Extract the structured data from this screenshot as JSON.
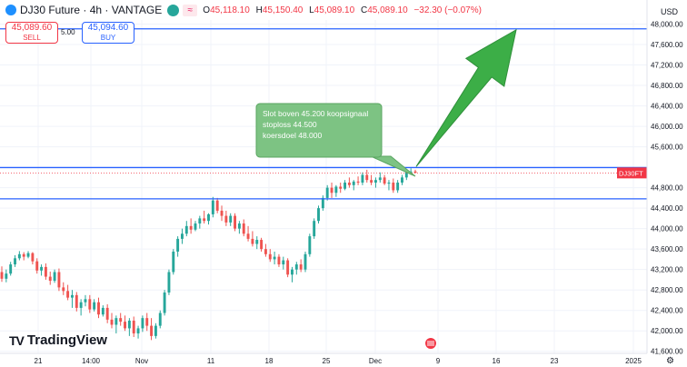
{
  "header": {
    "symbol_title": "DJ30 Future · 4h · VANTAGE",
    "open_label": "O",
    "open": "45,118.10",
    "high_label": "H",
    "high": "45,150.40",
    "low_label": "L",
    "low": "45,089.10",
    "close_label": "C",
    "close": "45,089.10",
    "change": "−32.30 (−0.07%)",
    "currency": "USD",
    "wave_icon": "≈"
  },
  "trade": {
    "sell_price": "45,089.60",
    "sell_label": "SELL",
    "buy_price": "45,094.60",
    "buy_label": "BUY",
    "spread": "5.00"
  },
  "chart_data": {
    "type": "candlestick",
    "x_tick_labels": [
      "21",
      "14:00",
      "Nov",
      "11",
      "18",
      "25",
      "Dec",
      "9",
      "16",
      "23",
      "2025"
    ],
    "y_tick_labels": [
      "48,000.00",
      "47,600.00",
      "47,200.00",
      "46,800.00",
      "46,400.00",
      "46,000.00",
      "45,600.00",
      "44,800.00",
      "44,400.00",
      "44,000.00",
      "43,600.00",
      "43,200.00",
      "42,800.00",
      "42,400.00",
      "42,000.00",
      "41,600.00"
    ],
    "ylim": [
      41560,
      48080
    ],
    "horizontal_lines": [
      {
        "value": 47906.62,
        "label": "47,906.62"
      },
      {
        "value": 45194.19,
        "label": "45,194.19"
      },
      {
        "value": 44581.89,
        "label": "44,581.89"
      }
    ],
    "last_price": {
      "value": 45089.1,
      "label": "45,089.10",
      "symbol": "DJ30FT"
    },
    "annotation": [
      "Slot boven 45.200 koopsignaal",
      "stoploss 44.500",
      "koersdoel 48.000"
    ],
    "arrow": {
      "from_value": 45194,
      "to_value": 47906
    },
    "colors": {
      "up": "#26a69a",
      "down": "#ef5350",
      "line": "#2962ff",
      "annotation_fill": "#7dc383",
      "arrow": "#3cae47"
    },
    "candles": [
      {
        "o": 43150,
        "h": 43260,
        "l": 42960,
        "c": 43020
      },
      {
        "o": 43020,
        "h": 43200,
        "l": 42950,
        "c": 43120
      },
      {
        "o": 43120,
        "h": 43350,
        "l": 43080,
        "c": 43300
      },
      {
        "o": 43300,
        "h": 43480,
        "l": 43250,
        "c": 43420
      },
      {
        "o": 43420,
        "h": 43560,
        "l": 43380,
        "c": 43500
      },
      {
        "o": 43500,
        "h": 43540,
        "l": 43380,
        "c": 43450
      },
      {
        "o": 43450,
        "h": 43560,
        "l": 43420,
        "c": 43520
      },
      {
        "o": 43520,
        "h": 43540,
        "l": 43300,
        "c": 43360
      },
      {
        "o": 43360,
        "h": 43420,
        "l": 43120,
        "c": 43180
      },
      {
        "o": 43180,
        "h": 43300,
        "l": 43080,
        "c": 43250
      },
      {
        "o": 43250,
        "h": 43320,
        "l": 43000,
        "c": 43060
      },
      {
        "o": 43060,
        "h": 43160,
        "l": 42900,
        "c": 42980
      },
      {
        "o": 42980,
        "h": 43200,
        "l": 42940,
        "c": 43150
      },
      {
        "o": 43150,
        "h": 43220,
        "l": 42780,
        "c": 42850
      },
      {
        "o": 42850,
        "h": 42950,
        "l": 42700,
        "c": 42780
      },
      {
        "o": 42780,
        "h": 42900,
        "l": 42600,
        "c": 42650
      },
      {
        "o": 42650,
        "h": 42800,
        "l": 42450,
        "c": 42700
      },
      {
        "o": 42700,
        "h": 42760,
        "l": 42380,
        "c": 42450
      },
      {
        "o": 42450,
        "h": 42620,
        "l": 42300,
        "c": 42560
      },
      {
        "o": 42560,
        "h": 42700,
        "l": 42480,
        "c": 42620
      },
      {
        "o": 42620,
        "h": 42700,
        "l": 42350,
        "c": 42420
      },
      {
        "o": 42420,
        "h": 42620,
        "l": 42380,
        "c": 42560
      },
      {
        "o": 42560,
        "h": 42650,
        "l": 42250,
        "c": 42320
      },
      {
        "o": 42320,
        "h": 42500,
        "l": 42280,
        "c": 42450
      },
      {
        "o": 42450,
        "h": 42520,
        "l": 42150,
        "c": 42220
      },
      {
        "o": 42220,
        "h": 42350,
        "l": 42050,
        "c": 42120
      },
      {
        "o": 42120,
        "h": 42300,
        "l": 41950,
        "c": 42250
      },
      {
        "o": 42250,
        "h": 42350,
        "l": 42100,
        "c": 42180
      },
      {
        "o": 42180,
        "h": 42300,
        "l": 42000,
        "c": 42050
      },
      {
        "o": 42050,
        "h": 42250,
        "l": 41900,
        "c": 42200
      },
      {
        "o": 42200,
        "h": 42280,
        "l": 41880,
        "c": 41950
      },
      {
        "o": 41950,
        "h": 42100,
        "l": 41850,
        "c": 42050
      },
      {
        "o": 42050,
        "h": 42300,
        "l": 41980,
        "c": 42250
      },
      {
        "o": 42250,
        "h": 42350,
        "l": 42000,
        "c": 42100
      },
      {
        "o": 42100,
        "h": 42250,
        "l": 41820,
        "c": 41900
      },
      {
        "o": 41900,
        "h": 42150,
        "l": 41850,
        "c": 42100
      },
      {
        "o": 42100,
        "h": 42400,
        "l": 42050,
        "c": 42350
      },
      {
        "o": 42350,
        "h": 42800,
        "l": 42300,
        "c": 42750
      },
      {
        "o": 42750,
        "h": 43200,
        "l": 42700,
        "c": 43150
      },
      {
        "o": 43150,
        "h": 43600,
        "l": 43100,
        "c": 43550
      },
      {
        "o": 43550,
        "h": 43850,
        "l": 43450,
        "c": 43800
      },
      {
        "o": 43800,
        "h": 44000,
        "l": 43700,
        "c": 43900
      },
      {
        "o": 43900,
        "h": 44150,
        "l": 43850,
        "c": 44050
      },
      {
        "o": 44050,
        "h": 44200,
        "l": 43900,
        "c": 43980
      },
      {
        "o": 43980,
        "h": 44150,
        "l": 43950,
        "c": 44100
      },
      {
        "o": 44100,
        "h": 44250,
        "l": 44000,
        "c": 44200
      },
      {
        "o": 44200,
        "h": 44350,
        "l": 44100,
        "c": 44150
      },
      {
        "o": 44150,
        "h": 44300,
        "l": 44080,
        "c": 44280
      },
      {
        "o": 44280,
        "h": 44620,
        "l": 44220,
        "c": 44550
      },
      {
        "o": 44550,
        "h": 44600,
        "l": 44300,
        "c": 44350
      },
      {
        "o": 44350,
        "h": 44450,
        "l": 44150,
        "c": 44250
      },
      {
        "o": 44250,
        "h": 44350,
        "l": 44050,
        "c": 44120
      },
      {
        "o": 44120,
        "h": 44300,
        "l": 44050,
        "c": 44250
      },
      {
        "o": 44250,
        "h": 44300,
        "l": 43950,
        "c": 44000
      },
      {
        "o": 44000,
        "h": 44150,
        "l": 43900,
        "c": 44100
      },
      {
        "o": 44100,
        "h": 44180,
        "l": 43850,
        "c": 43900
      },
      {
        "o": 43900,
        "h": 44050,
        "l": 43750,
        "c": 43800
      },
      {
        "o": 43800,
        "h": 43950,
        "l": 43650,
        "c": 43700
      },
      {
        "o": 43700,
        "h": 43850,
        "l": 43600,
        "c": 43780
      },
      {
        "o": 43780,
        "h": 43820,
        "l": 43550,
        "c": 43600
      },
      {
        "o": 43600,
        "h": 43700,
        "l": 43450,
        "c": 43500
      },
      {
        "o": 43500,
        "h": 43600,
        "l": 43350,
        "c": 43400
      },
      {
        "o": 43400,
        "h": 43550,
        "l": 43300,
        "c": 43450
      },
      {
        "o": 43450,
        "h": 43500,
        "l": 43250,
        "c": 43300
      },
      {
        "o": 43300,
        "h": 43450,
        "l": 43200,
        "c": 43380
      },
      {
        "o": 43380,
        "h": 43420,
        "l": 43050,
        "c": 43100
      },
      {
        "o": 43100,
        "h": 43250,
        "l": 42950,
        "c": 43200
      },
      {
        "o": 43200,
        "h": 43350,
        "l": 43100,
        "c": 43300
      },
      {
        "o": 43300,
        "h": 43400,
        "l": 43150,
        "c": 43200
      },
      {
        "o": 43200,
        "h": 43550,
        "l": 43150,
        "c": 43500
      },
      {
        "o": 43500,
        "h": 43900,
        "l": 43450,
        "c": 43850
      },
      {
        "o": 43850,
        "h": 44200,
        "l": 43800,
        "c": 44150
      },
      {
        "o": 44150,
        "h": 44450,
        "l": 44100,
        "c": 44400
      },
      {
        "o": 44400,
        "h": 44650,
        "l": 44350,
        "c": 44600
      },
      {
        "o": 44600,
        "h": 44850,
        "l": 44550,
        "c": 44800
      },
      {
        "o": 44800,
        "h": 44900,
        "l": 44600,
        "c": 44700
      },
      {
        "o": 44700,
        "h": 44850,
        "l": 44620,
        "c": 44820
      },
      {
        "o": 44820,
        "h": 44900,
        "l": 44700,
        "c": 44780
      },
      {
        "o": 44780,
        "h": 44950,
        "l": 44750,
        "c": 44900
      },
      {
        "o": 44900,
        "h": 45000,
        "l": 44800,
        "c": 44850
      },
      {
        "o": 44850,
        "h": 44950,
        "l": 44750,
        "c": 44920
      },
      {
        "o": 44920,
        "h": 45020,
        "l": 44850,
        "c": 44900
      },
      {
        "o": 44900,
        "h": 45100,
        "l": 44850,
        "c": 45050
      },
      {
        "o": 45050,
        "h": 45150,
        "l": 44900,
        "c": 44950
      },
      {
        "o": 44950,
        "h": 45050,
        "l": 44850,
        "c": 44900
      },
      {
        "o": 44900,
        "h": 45000,
        "l": 44800,
        "c": 44950
      },
      {
        "o": 44950,
        "h": 45100,
        "l": 44900,
        "c": 45000
      },
      {
        "o": 45000,
        "h": 45050,
        "l": 44850,
        "c": 44880
      },
      {
        "o": 44880,
        "h": 44950,
        "l": 44750,
        "c": 44900
      },
      {
        "o": 44900,
        "h": 44980,
        "l": 44700,
        "c": 44750
      },
      {
        "o": 44750,
        "h": 44950,
        "l": 44700,
        "c": 44900
      },
      {
        "o": 44900,
        "h": 45050,
        "l": 44850,
        "c": 45000
      },
      {
        "o": 45000,
        "h": 45150,
        "l": 44950,
        "c": 45100
      },
      {
        "o": 45100,
        "h": 45180,
        "l": 45050,
        "c": 45118
      },
      {
        "o": 45118,
        "h": 45150,
        "l": 45089,
        "c": 45089
      }
    ]
  }
}
